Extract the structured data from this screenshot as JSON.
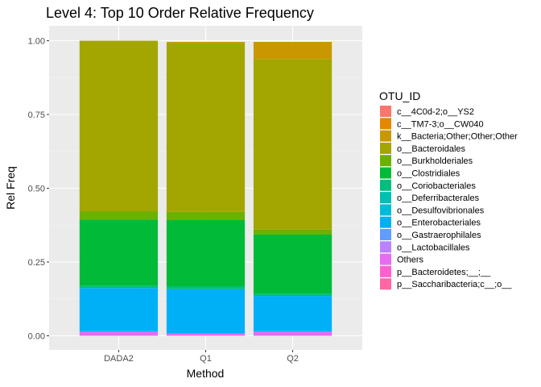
{
  "chart_data": {
    "type": "bar",
    "stacked": true,
    "title": "Level 4: Top 10 Order Relative Frequency",
    "xlabel": "Method",
    "ylabel": "Rel Freq",
    "ylim": [
      0,
      1
    ],
    "yticks": [
      "0.00",
      "0.25",
      "0.50",
      "0.75",
      "1.00"
    ],
    "grid": true,
    "legend_title": "OTU_ID",
    "legend_position": "right",
    "categories": [
      "DADA2",
      "Q1",
      "Q2"
    ],
    "series": [
      {
        "name": "c__4C0d-2;o__YS2",
        "color": "#F8766D",
        "values": [
          0.0,
          0.0,
          0.0
        ]
      },
      {
        "name": "c__TM7-3;o__CW040",
        "color": "#E58700",
        "values": [
          0.0,
          0.0,
          0.0
        ]
      },
      {
        "name": "k__Bacteria;Other;Other;Other",
        "color": "#C99800",
        "values": [
          0.0,
          0.004,
          0.058
        ]
      },
      {
        "name": "o__Bacteroidales",
        "color": "#A3A500",
        "values": [
          0.578,
          0.572,
          0.578
        ]
      },
      {
        "name": "o__Burkholderiales",
        "color": "#6BB100",
        "values": [
          0.028,
          0.028,
          0.017
        ]
      },
      {
        "name": "o__Clostridiales",
        "color": "#00BA38",
        "values": [
          0.224,
          0.224,
          0.2
        ]
      },
      {
        "name": "o__Coriobacteriales",
        "color": "#00BF7D",
        "values": [
          0.008,
          0.01,
          0.008
        ]
      },
      {
        "name": "o__Deferribacterales",
        "color": "#00C0AF",
        "values": [
          0.0,
          0.0,
          0.0
        ]
      },
      {
        "name": "o__Desulfovibrionales",
        "color": "#00BCD8",
        "values": [
          0.0,
          0.0,
          0.0
        ]
      },
      {
        "name": "o__Enterobacteriales",
        "color": "#00B0F6",
        "values": [
          0.148,
          0.15,
          0.121
        ]
      },
      {
        "name": "o__Gastraerophilales",
        "color": "#619CFF",
        "values": [
          0.0,
          0.0,
          0.0
        ]
      },
      {
        "name": "o__Lactobacillales",
        "color": "#B983FF",
        "values": [
          0.0,
          0.0,
          0.0
        ]
      },
      {
        "name": "Others",
        "color": "#E76BF3",
        "values": [
          0.014,
          0.008,
          0.014
        ]
      },
      {
        "name": "p__Bacteroidetes;__;__",
        "color": "#FD61D1",
        "values": [
          0.0,
          0.0,
          0.0
        ]
      },
      {
        "name": "p__Saccharibacteria;c__;o__",
        "color": "#FF67A4",
        "values": [
          0.0,
          0.0,
          0.0
        ]
      }
    ]
  }
}
